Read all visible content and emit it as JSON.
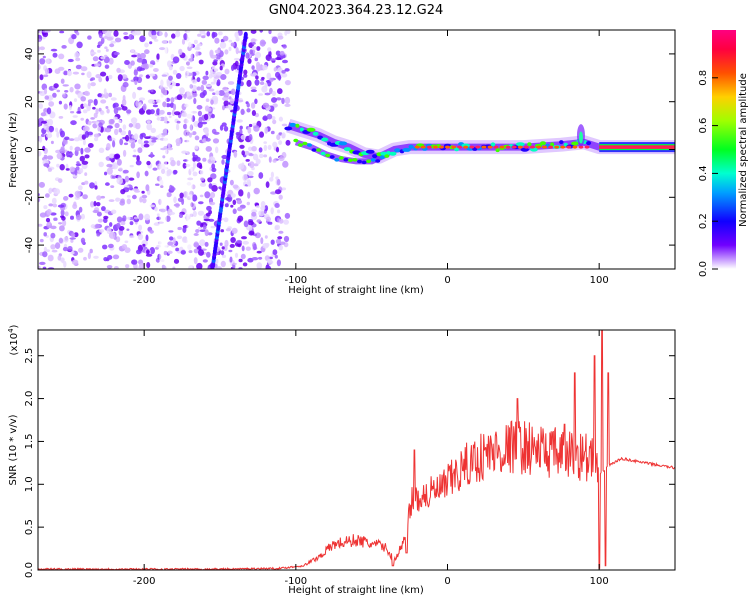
{
  "title": "GN04.2023.364.23.12.G24",
  "chart_data": [
    {
      "type": "heatmap",
      "xlabel": "Height of straight line (km)",
      "ylabel": "Frequency (Hz)",
      "xlim": [
        -270,
        150
      ],
      "ylim": [
        -50,
        50
      ],
      "xticks": [
        -200,
        -100,
        0,
        100
      ],
      "xtick_labels": [
        "-200",
        "-100",
        "0",
        "100"
      ],
      "yticks": [
        -40,
        -20,
        0,
        20,
        40
      ],
      "ytick_labels": [
        "-40",
        "-20",
        "0",
        "20",
        "40"
      ],
      "colorbar": {
        "label": "Normalized spectral amplitude",
        "range": [
          0,
          1
        ],
        "ticks": [
          0.0,
          0.2,
          0.4,
          0.6,
          0.8
        ],
        "tick_labels": [
          "0.0",
          "0.2",
          "0.4",
          "0.6",
          "0.8"
        ]
      },
      "features": {
        "noise_region_x": [
          -270,
          -105
        ],
        "diagonal_track": {
          "x_start": -155,
          "y_start": -50,
          "x_end": -133,
          "y_end": 48
        },
        "signal_trace": [
          [
            -105,
            10
          ],
          [
            -95,
            8
          ],
          [
            -85,
            6
          ],
          [
            -75,
            3
          ],
          [
            -65,
            1
          ],
          [
            -55,
            -2
          ],
          [
            -45,
            -3
          ],
          [
            -35,
            0
          ],
          [
            -25,
            1
          ],
          [
            -15,
            1
          ],
          [
            0,
            1
          ],
          [
            25,
            1
          ],
          [
            50,
            1
          ],
          [
            75,
            2
          ],
          [
            90,
            3
          ],
          [
            100,
            1
          ],
          [
            150,
            1
          ]
        ],
        "secondary_trace": [
          [
            -100,
            3
          ],
          [
            -90,
            1
          ],
          [
            -80,
            -2
          ],
          [
            -70,
            -4
          ],
          [
            -60,
            -5
          ],
          [
            -50,
            -5
          ],
          [
            -40,
            -2
          ]
        ],
        "spike_x": 88
      }
    },
    {
      "type": "line",
      "xlabel": "Height of straight line (km)",
      "ylabel": "SNR (10 * v/v)",
      "y_multiplier": "(x10",
      "y_multiplier_exp": "4",
      "y_multiplier_close": ")",
      "xlim": [
        -270,
        150
      ],
      "ylim": [
        0,
        2.8
      ],
      "xticks": [
        -200,
        -100,
        0,
        100
      ],
      "xtick_labels": [
        "-200",
        "-100",
        "0",
        "100"
      ],
      "yticks": [
        0.0,
        0.5,
        1.0,
        1.5,
        2.0,
        2.5
      ],
      "ytick_labels": [
        "0.0",
        "0.5",
        "1.0",
        "1.5",
        "2.0",
        "2.5"
      ],
      "color": "#ee3333",
      "envelope": [
        [
          -270,
          0.01
        ],
        [
          -200,
          0.01
        ],
        [
          -150,
          0.01
        ],
        [
          -110,
          0.02
        ],
        [
          -95,
          0.05
        ],
        [
          -85,
          0.15
        ],
        [
          -75,
          0.3
        ],
        [
          -60,
          0.35
        ],
        [
          -50,
          0.3
        ],
        [
          -42,
          0.28
        ],
        [
          -35,
          0.12
        ],
        [
          -28,
          0.35
        ],
        [
          -24,
          0.8
        ],
        [
          -18,
          0.85
        ],
        [
          -10,
          0.9
        ],
        [
          -3,
          0.95
        ],
        [
          5,
          1.1
        ],
        [
          15,
          1.25
        ],
        [
          25,
          1.35
        ],
        [
          35,
          1.4
        ],
        [
          45,
          1.45
        ],
        [
          55,
          1.42
        ],
        [
          65,
          1.38
        ],
        [
          75,
          1.35
        ],
        [
          85,
          1.35
        ],
        [
          95,
          1.3
        ],
        [
          100,
          1.1
        ],
        [
          106,
          1.22
        ],
        [
          115,
          1.3
        ],
        [
          130,
          1.25
        ],
        [
          150,
          1.19
        ]
      ],
      "spikes": [
        [
          -36,
          0.05
        ],
        [
          -27,
          0.2
        ],
        [
          -22,
          1.4
        ],
        [
          46,
          2.0
        ],
        [
          77,
          1.7
        ],
        [
          84,
          2.3
        ],
        [
          97,
          2.5
        ],
        [
          100,
          0.02
        ],
        [
          102,
          2.8
        ],
        [
          104,
          0.05
        ],
        [
          106,
          2.3
        ]
      ]
    }
  ]
}
